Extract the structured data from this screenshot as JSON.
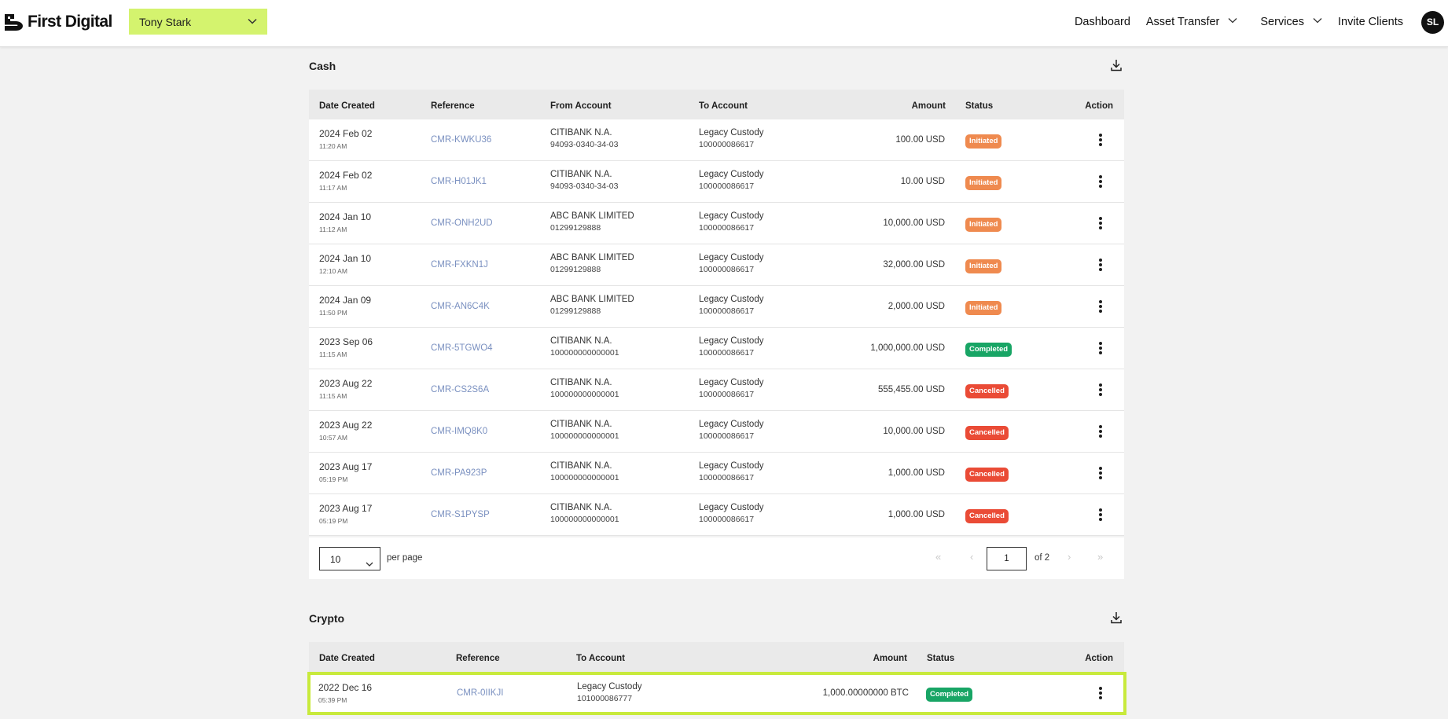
{
  "brand": {
    "name": "First Digital"
  },
  "client_selector": {
    "value": "Tony Stark"
  },
  "nav": {
    "dashboard": "Dashboard",
    "asset_transfer": "Asset Transfer",
    "services": "Services",
    "invite_clients": "Invite Clients",
    "avatar_initials": "SL"
  },
  "cash": {
    "title": "Cash",
    "headers": {
      "date": "Date Created",
      "reference": "Reference",
      "from": "From Account",
      "to": "To Account",
      "amount": "Amount",
      "status": "Status",
      "action": "Action"
    },
    "rows": [
      {
        "date": "2024 Feb 02",
        "time": "11:20 AM",
        "ref": "CMR-KWKU36",
        "from_name": "CITIBANK N.A.",
        "from_num": "94093-0340-34-03",
        "to_name": "Legacy Custody",
        "to_num": "100000086617",
        "amount": "100.00 USD",
        "status": "Initiated"
      },
      {
        "date": "2024 Feb 02",
        "time": "11:17 AM",
        "ref": "CMR-H01JK1",
        "from_name": "CITIBANK N.A.",
        "from_num": "94093-0340-34-03",
        "to_name": "Legacy Custody",
        "to_num": "100000086617",
        "amount": "10.00 USD",
        "status": "Initiated"
      },
      {
        "date": "2024 Jan 10",
        "time": "11:12 AM",
        "ref": "CMR-ONH2UD",
        "from_name": "ABC BANK LIMITED",
        "from_num": "01299129888",
        "to_name": "Legacy Custody",
        "to_num": "100000086617",
        "amount": "10,000.00 USD",
        "status": "Initiated"
      },
      {
        "date": "2024 Jan 10",
        "time": "12:10 AM",
        "ref": "CMR-FXKN1J",
        "from_name": "ABC BANK LIMITED",
        "from_num": "01299129888",
        "to_name": "Legacy Custody",
        "to_num": "100000086617",
        "amount": "32,000.00 USD",
        "status": "Initiated"
      },
      {
        "date": "2024 Jan 09",
        "time": "11:50 PM",
        "ref": "CMR-AN6C4K",
        "from_name": "ABC BANK LIMITED",
        "from_num": "01299129888",
        "to_name": "Legacy Custody",
        "to_num": "100000086617",
        "amount": "2,000.00 USD",
        "status": "Initiated"
      },
      {
        "date": "2023 Sep 06",
        "time": "11:15 AM",
        "ref": "CMR-5TGWO4",
        "from_name": "CITIBANK N.A.",
        "from_num": "100000000000001",
        "to_name": "Legacy Custody",
        "to_num": "100000086617",
        "amount": "1,000,000.00 USD",
        "status": "Completed"
      },
      {
        "date": "2023 Aug 22",
        "time": "11:15 AM",
        "ref": "CMR-CS2S6A",
        "from_name": "CITIBANK N.A.",
        "from_num": "100000000000001",
        "to_name": "Legacy Custody",
        "to_num": "100000086617",
        "amount": "555,455.00 USD",
        "status": "Cancelled"
      },
      {
        "date": "2023 Aug 22",
        "time": "10:57 AM",
        "ref": "CMR-IMQ8K0",
        "from_name": "CITIBANK N.A.",
        "from_num": "100000000000001",
        "to_name": "Legacy Custody",
        "to_num": "100000086617",
        "amount": "10,000.00 USD",
        "status": "Cancelled"
      },
      {
        "date": "2023 Aug 17",
        "time": "05:19 PM",
        "ref": "CMR-PA923P",
        "from_name": "CITIBANK N.A.",
        "from_num": "100000000000001",
        "to_name": "Legacy Custody",
        "to_num": "100000086617",
        "amount": "1,000.00 USD",
        "status": "Cancelled"
      },
      {
        "date": "2023 Aug 17",
        "time": "05:19 PM",
        "ref": "CMR-S1PYSP",
        "from_name": "CITIBANK N.A.",
        "from_num": "100000000000001",
        "to_name": "Legacy Custody",
        "to_num": "100000086617",
        "amount": "1,000.00 USD",
        "status": "Cancelled"
      }
    ],
    "pagination": {
      "per_page_value": "10",
      "per_page_label": "per page",
      "page_value": "1",
      "of_label": "of 2",
      "first_glyph": "«",
      "prev_glyph": "‹",
      "next_glyph": "›",
      "last_glyph": "»"
    }
  },
  "crypto": {
    "title": "Crypto",
    "headers": {
      "date": "Date Created",
      "reference": "Reference",
      "to": "To Account",
      "amount": "Amount",
      "status": "Status",
      "action": "Action"
    },
    "rows": [
      {
        "date": "2022 Dec 16",
        "time": "05:39 PM",
        "ref": "CMR-0IIKJI",
        "to_name": "Legacy Custody",
        "to_num": "101000086777",
        "amount": "1,000.00000000 BTC",
        "status": "Completed"
      }
    ]
  },
  "colors": {
    "accent": "#d4f36e",
    "highlight": "#c8ea3c",
    "initiated": "#ef8a4f",
    "completed": "#18a565",
    "cancelled": "#ea4b36",
    "link": "#7a90c0"
  },
  "icons": {
    "logo": "first-digital-logo",
    "chevron": "chevron-down-icon",
    "download": "download-icon",
    "kebab": "more-vertical-icon"
  }
}
